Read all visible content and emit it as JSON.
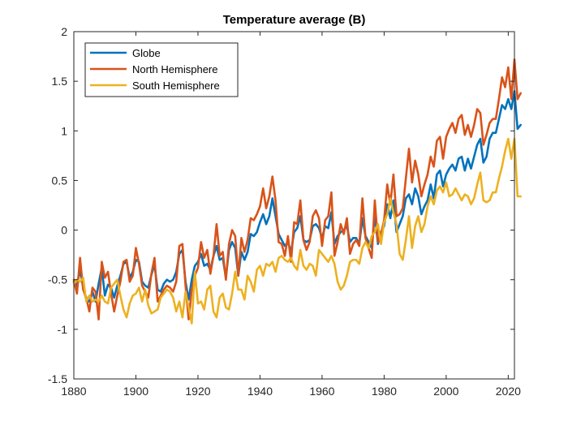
{
  "chart_data": {
    "type": "line",
    "title": "Temperature average (B)",
    "xlabel": "",
    "ylabel": "",
    "xlim": [
      1880,
      2022
    ],
    "ylim": [
      -1.5,
      2
    ],
    "xticks": [
      1880,
      1900,
      1920,
      1940,
      1960,
      1980,
      2000,
      2020
    ],
    "yticks": [
      -1.5,
      -1,
      -0.5,
      0,
      0.5,
      1,
      1.5,
      2
    ],
    "xtick_labels": [
      "1880",
      "1900",
      "1920",
      "1940",
      "1960",
      "1980",
      "2000",
      "2020"
    ],
    "ytick_labels": [
      "-1.5",
      "-1",
      "-0.5",
      "0",
      "0.5",
      "1",
      "1.5",
      "2"
    ],
    "grid": false,
    "legend_position": "top-left",
    "x_start": 1880,
    "series": [
      {
        "name": "Globe",
        "color": "#0072BD",
        "values": [
          -0.52,
          -0.56,
          -0.4,
          -0.58,
          -0.7,
          -0.72,
          -0.62,
          -0.72,
          -0.54,
          -0.38,
          -0.66,
          -0.55,
          -0.58,
          -0.68,
          -0.56,
          -0.46,
          -0.34,
          -0.32,
          -0.48,
          -0.42,
          -0.3,
          -0.32,
          -0.52,
          -0.56,
          -0.58,
          -0.45,
          -0.35,
          -0.6,
          -0.62,
          -0.54,
          -0.5,
          -0.52,
          -0.5,
          -0.42,
          -0.24,
          -0.2,
          -0.52,
          -0.7,
          -0.5,
          -0.36,
          -0.32,
          -0.24,
          -0.36,
          -0.34,
          -0.4,
          -0.26,
          -0.16,
          -0.3,
          -0.28,
          -0.48,
          -0.2,
          -0.12,
          -0.18,
          -0.46,
          -0.22,
          -0.3,
          -0.22,
          -0.04,
          -0.06,
          -0.02,
          0.08,
          0.16,
          0.06,
          0.14,
          0.32,
          0.14,
          -0.04,
          -0.1,
          -0.16,
          -0.12,
          -0.22,
          -0.02,
          0.02,
          0.14,
          -0.1,
          -0.12,
          -0.1,
          0.04,
          0.06,
          0.02,
          -0.08,
          0.04,
          0.02,
          0.18,
          -0.14,
          -0.06,
          -0.02,
          0.0,
          0.04,
          -0.12,
          -0.08,
          -0.08,
          -0.14,
          0.12,
          -0.06,
          -0.12,
          -0.18,
          0.16,
          -0.14,
          -0.02,
          0.04,
          0.26,
          0.12,
          0.3,
          -0.02,
          0.06,
          0.14,
          0.32,
          0.36,
          0.26,
          0.42,
          0.34,
          0.16,
          0.24,
          0.3,
          0.46,
          0.32,
          0.56,
          0.6,
          0.44,
          0.56,
          0.62,
          0.66,
          0.6,
          0.72,
          0.74,
          0.6,
          0.72,
          0.62,
          0.74,
          0.86,
          0.92,
          0.68,
          0.74,
          0.92,
          0.98,
          0.98,
          1.12,
          1.26,
          1.22,
          1.32,
          1.22,
          1.4,
          1.02,
          1.06
        ]
      },
      {
        "name": "North Hemisphere",
        "color": "#D95319",
        "values": [
          -0.5,
          -0.64,
          -0.28,
          -0.6,
          -0.68,
          -0.82,
          -0.58,
          -0.62,
          -0.9,
          -0.32,
          -0.48,
          -0.42,
          -0.64,
          -0.82,
          -0.66,
          -0.52,
          -0.32,
          -0.3,
          -0.52,
          -0.46,
          -0.18,
          -0.34,
          -0.56,
          -0.62,
          -0.68,
          -0.44,
          -0.28,
          -0.72,
          -0.66,
          -0.6,
          -0.56,
          -0.58,
          -0.62,
          -0.52,
          -0.16,
          -0.14,
          -0.56,
          -0.9,
          -0.6,
          -0.46,
          -0.38,
          -0.12,
          -0.28,
          -0.2,
          -0.44,
          -0.26,
          0.06,
          -0.26,
          -0.22,
          -0.5,
          -0.14,
          0.0,
          -0.06,
          -0.46,
          -0.08,
          -0.22,
          -0.1,
          0.12,
          0.1,
          0.16,
          0.24,
          0.42,
          0.22,
          0.34,
          0.54,
          0.3,
          -0.12,
          -0.14,
          -0.26,
          -0.06,
          -0.32,
          0.08,
          0.06,
          0.3,
          -0.1,
          -0.2,
          -0.12,
          0.14,
          0.2,
          0.12,
          -0.16,
          0.1,
          0.14,
          0.38,
          -0.26,
          -0.12,
          0.06,
          -0.04,
          0.12,
          -0.24,
          -0.14,
          -0.1,
          -0.16,
          0.32,
          -0.08,
          -0.18,
          -0.28,
          0.3,
          -0.12,
          -0.04,
          0.1,
          0.46,
          0.26,
          0.56,
          0.14,
          0.16,
          0.22,
          0.52,
          0.82,
          0.48,
          0.7,
          0.56,
          0.34,
          0.46,
          0.56,
          0.74,
          0.64,
          0.9,
          0.94,
          0.72,
          0.94,
          1.02,
          1.08,
          0.98,
          1.12,
          1.16,
          0.96,
          1.06,
          0.94,
          1.06,
          1.22,
          1.18,
          0.86,
          0.96,
          1.08,
          1.12,
          1.12,
          1.32,
          1.54,
          1.44,
          1.64,
          1.32,
          1.72,
          1.32,
          1.38
        ]
      },
      {
        "name": "South Hemisphere",
        "color": "#EDB120",
        "values": [
          -0.54,
          -0.5,
          -0.52,
          -0.48,
          -0.72,
          -0.66,
          -0.72,
          -0.7,
          -0.72,
          -0.66,
          -0.72,
          -0.74,
          -0.58,
          -0.54,
          -0.5,
          -0.66,
          -0.8,
          -0.88,
          -0.74,
          -0.66,
          -0.64,
          -0.58,
          -0.72,
          -0.6,
          -0.76,
          -0.84,
          -0.82,
          -0.8,
          -0.68,
          -0.64,
          -0.6,
          -0.62,
          -0.68,
          -0.82,
          -0.72,
          -0.88,
          -0.62,
          -0.78,
          -0.94,
          -0.42,
          -0.74,
          -0.72,
          -0.8,
          -0.6,
          -0.56,
          -0.82,
          -0.88,
          -0.68,
          -0.64,
          -0.78,
          -0.8,
          -0.64,
          -0.42,
          -0.6,
          -0.6,
          -0.7,
          -0.46,
          -0.52,
          -0.62,
          -0.4,
          -0.36,
          -0.46,
          -0.34,
          -0.36,
          -0.32,
          -0.42,
          -0.28,
          -0.26,
          -0.3,
          -0.32,
          -0.28,
          -0.36,
          -0.4,
          -0.2,
          -0.36,
          -0.4,
          -0.34,
          -0.36,
          -0.46,
          -0.2,
          -0.24,
          -0.28,
          -0.32,
          -0.26,
          -0.34,
          -0.52,
          -0.6,
          -0.56,
          -0.46,
          -0.32,
          -0.3,
          -0.3,
          -0.34,
          -0.18,
          -0.12,
          -0.18,
          -0.06,
          -0.02,
          0.06,
          -0.14,
          0.08,
          0.16,
          0.32,
          0.18,
          0.06,
          -0.24,
          -0.3,
          -0.1,
          0.14,
          -0.18,
          0.04,
          0.14,
          -0.02,
          0.06,
          0.24,
          0.34,
          0.26,
          0.4,
          0.44,
          0.38,
          0.48,
          0.34,
          0.36,
          0.42,
          0.36,
          0.3,
          0.36,
          0.34,
          0.26,
          0.32,
          0.46,
          0.58,
          0.3,
          0.28,
          0.3,
          0.38,
          0.38,
          0.52,
          0.64,
          0.8,
          0.92,
          0.72,
          0.92,
          0.34,
          0.34
        ]
      }
    ]
  }
}
